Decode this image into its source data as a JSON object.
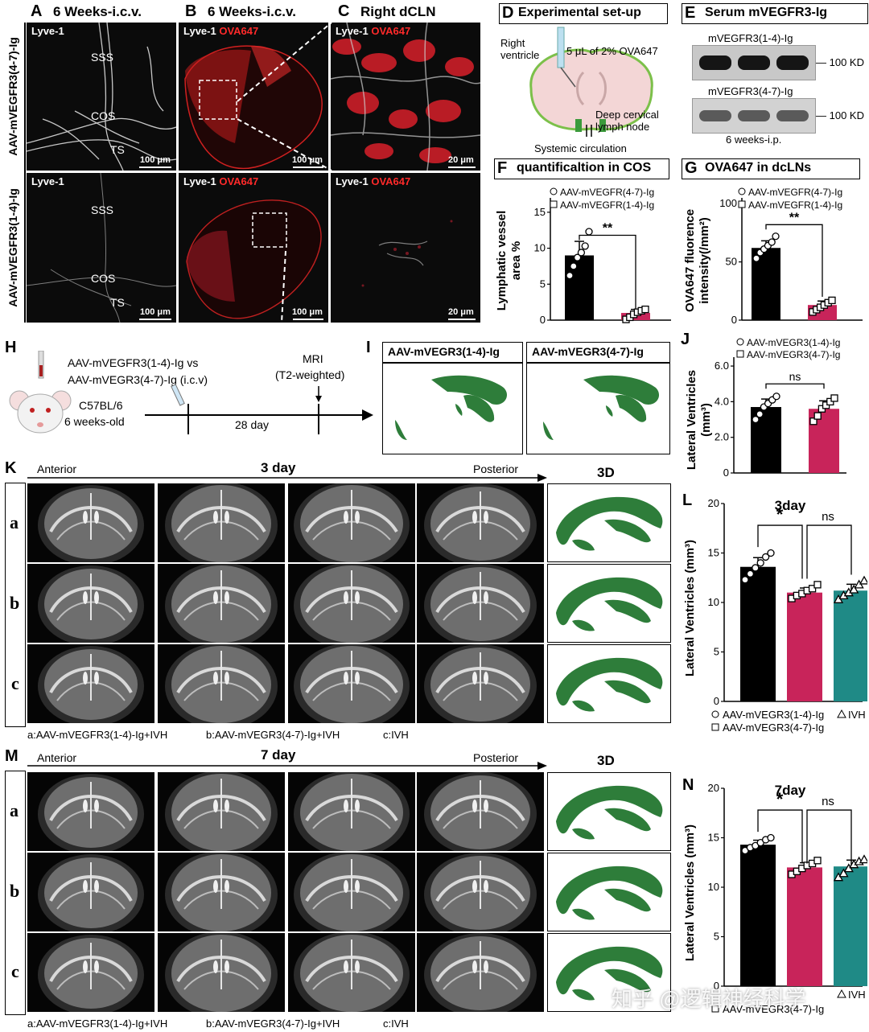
{
  "row1": {
    "A": {
      "letter": "A",
      "title": "6 Weeks-i.c.v."
    },
    "B": {
      "letter": "B",
      "title": "6 Weeks-i.c.v."
    },
    "C": {
      "letter": "C",
      "title": "Right dCLN"
    },
    "D": {
      "letter": "D",
      "title": "Experimental set-up"
    },
    "E": {
      "letter": "E",
      "title": "Serum mVEGFR3-Ig"
    },
    "group_top": "AAV-mVEGFR3(4-7)-Ig",
    "group_bottom": "AAV-mVEGFR3(1-4)-Ig",
    "lyve": "Lyve-1",
    "ova": "OVA647",
    "sss": "SSS",
    "cos": "COS",
    "ts": "TS",
    "scale100": "100 μm",
    "scale20": "20 μm"
  },
  "panelD": {
    "right_ventricle": "Right\nventricle",
    "injection": "5 μL of 2% OVA647",
    "deep_cervical": "Deep cervical\nlymph node",
    "systemic": "Systemic circulation"
  },
  "panelE": {
    "blot1": "mVEGFR3(1-4)-Ig",
    "blot2": "mVEGFR3(4-7)-Ig",
    "kd": "100 KD",
    "footer": "6 weeks-i.p."
  },
  "panelF": {
    "letter": "F",
    "title": "quantificaltion in COS",
    "legend": [
      "AAV-mVEGFR(4-7)-Ig",
      "AAV-mVEGFR(1-4)-Ig"
    ],
    "ylabel_line1": "Lymphatic vessel",
    "ylabel_line2": "area %",
    "sig": "**"
  },
  "panelG": {
    "letter": "G",
    "title": "OVA647 in dcLNs",
    "legend": [
      "AAV-mVEGFR(4-7)-Ig",
      "AAV-mVEGFR(1-4)-Ig"
    ],
    "ylabel_line1": "OVA647 fluorence",
    "ylabel_line2": "intensity(/mm²)",
    "sig": "**"
  },
  "panelH": {
    "letter": "H",
    "line1": "AAV-mVEGFR3(1-4)-Ig  vs",
    "line2": "AAV-mVEGR3(4-7)-Ig  (i.c.v)",
    "mouse": "C57BL/6",
    "age": "6 weeks-old",
    "mri": "MRI",
    "mri2": "(T2-weighted)",
    "days": "28 day"
  },
  "panelI": {
    "letter": "I",
    "left": "AAV-mVEGR3(1-4)-Ig",
    "right": "AAV-mVEGR3(4-7)-Ig"
  },
  "panelJ": {
    "letter": "J",
    "legend": [
      "AAV-mVEGR3(1-4)-Ig",
      "AAV-mVEGR3(4-7)-Ig"
    ],
    "ylabel_line1": "Lateral Ventricles",
    "ylabel_line2": "(mm³)",
    "sig": "ns"
  },
  "panelK": {
    "letter": "K",
    "anterior": "Anterior",
    "day": "3 day",
    "posterior": "Posterior",
    "three_d": "3D",
    "rows": [
      "a",
      "b",
      "c"
    ],
    "caption_a": "a:AAV-mVEGFR3(1-4)-Ig+IVH",
    "caption_b": "b:AAV-mVEGR3(4-7)-Ig+IVH",
    "caption_c": "c:IVH"
  },
  "panelL": {
    "letter": "L",
    "title": "3day",
    "ylabel": "Lateral Ventricles (mm³)",
    "sig1": "*",
    "sig2": "ns",
    "legend1": "AAV-mVEGR3(1-4)-Ig",
    "legend2": "AAV-mVEGR3(4-7)-Ig",
    "legend3": "IVH"
  },
  "panelM": {
    "letter": "M",
    "anterior": "Anterior",
    "day": "7 day",
    "posterior": "Posterior",
    "three_d": "3D",
    "rows": [
      "a",
      "b",
      "c"
    ],
    "caption_a": "a:AAV-mVEGFR3(1-4)-Ig+IVH",
    "caption_b": "b:AAV-mVEGR3(4-7)-Ig+IVH",
    "caption_c": "c:IVH"
  },
  "panelN": {
    "letter": "N",
    "title": "7day",
    "ylabel": "Lateral Ventricles (mm³)",
    "sig1": "*",
    "sig2": "ns",
    "legend1": "AAV-mVEGR3(4-7)-Ig",
    "legend3": "IVH"
  },
  "watermark": "知乎 @逻辑神经科学",
  "colors": {
    "black": "#000000",
    "crimson": "#c8245a",
    "teal": "#1f8a86",
    "green": "#2e7d3a",
    "ova": "#ff2a2a"
  },
  "chart_data": [
    {
      "id": "F",
      "type": "bar",
      "categories": [
        "AAV-mVEGFR(4-7)-Ig",
        "AAV-mVEGFR(1-4)-Ig"
      ],
      "values": [
        9.0,
        1.0
      ],
      "ylim": [
        0,
        17
      ],
      "yticks": [
        0,
        5,
        10,
        15
      ],
      "points": [
        [
          6.2,
          7.5,
          8.7,
          9.4,
          10.3,
          12.3
        ],
        [
          0.1,
          0.4,
          0.8,
          1.1,
          1.3,
          1.5
        ]
      ],
      "colors": [
        "#000000",
        "#c8245a"
      ]
    },
    {
      "id": "G",
      "type": "bar",
      "categories": [
        "AAV-mVEGFR(4-7)-Ig",
        "AAV-mVEGFR(1-4)-Ig"
      ],
      "values": [
        62,
        13
      ],
      "ylim": [
        0,
        105
      ],
      "yticks": [
        0,
        50,
        100
      ],
      "points": [
        [
          53,
          58,
          61,
          64,
          67,
          72
        ],
        [
          7,
          9,
          11,
          13,
          15,
          17
        ]
      ],
      "colors": [
        "#000000",
        "#c8245a"
      ]
    },
    {
      "id": "J",
      "type": "bar",
      "categories": [
        "AAV-mVEGR3(1-4)-Ig",
        "AAV-mVEGR3(4-7)-Ig"
      ],
      "values": [
        3.7,
        3.6
      ],
      "ylim": [
        0,
        6.5
      ],
      "yticks": [
        0,
        2.0,
        4.0,
        6.0
      ],
      "ytick_labels": [
        "0",
        "2.0",
        "4.0",
        "6.0"
      ],
      "points": [
        [
          3.0,
          3.3,
          3.7,
          3.9,
          4.1,
          4.3
        ],
        [
          2.9,
          3.2,
          3.6,
          3.8,
          4.0,
          4.2
        ]
      ],
      "colors": [
        "#000000",
        "#c8245a"
      ]
    },
    {
      "id": "L",
      "type": "bar",
      "categories": [
        "AAV-mVEGR3(1-4)-Ig",
        "AAV-mVEGR3(4-7)-Ig",
        "IVH"
      ],
      "values": [
        13.6,
        11.0,
        11.2
      ],
      "ylim": [
        0,
        20
      ],
      "yticks": [
        0,
        5,
        10,
        15,
        20
      ],
      "points": [
        [
          12.3,
          12.9,
          13.5,
          14.0,
          14.6,
          15.0
        ],
        [
          10.4,
          10.7,
          10.9,
          11.2,
          11.4,
          11.8
        ],
        [
          10.3,
          10.7,
          11.0,
          11.3,
          11.8,
          12.2
        ]
      ],
      "colors": [
        "#000000",
        "#c8245a",
        "#1f8a86"
      ]
    },
    {
      "id": "N",
      "type": "bar",
      "categories": [
        "AAV-mVEGR3(1-4)-Ig",
        "AAV-mVEGR3(4-7)-Ig",
        "IVH"
      ],
      "values": [
        14.3,
        12.0,
        12.1
      ],
      "ylim": [
        0,
        20
      ],
      "yticks": [
        0,
        5,
        10,
        15,
        20
      ],
      "points": [
        [
          13.7,
          14.0,
          14.2,
          14.5,
          14.8,
          15.0
        ],
        [
          11.3,
          11.6,
          11.9,
          12.2,
          12.4,
          12.7
        ],
        [
          11.0,
          11.4,
          11.9,
          12.3,
          12.6,
          12.8
        ]
      ],
      "colors": [
        "#000000",
        "#c8245a",
        "#1f8a86"
      ]
    }
  ]
}
